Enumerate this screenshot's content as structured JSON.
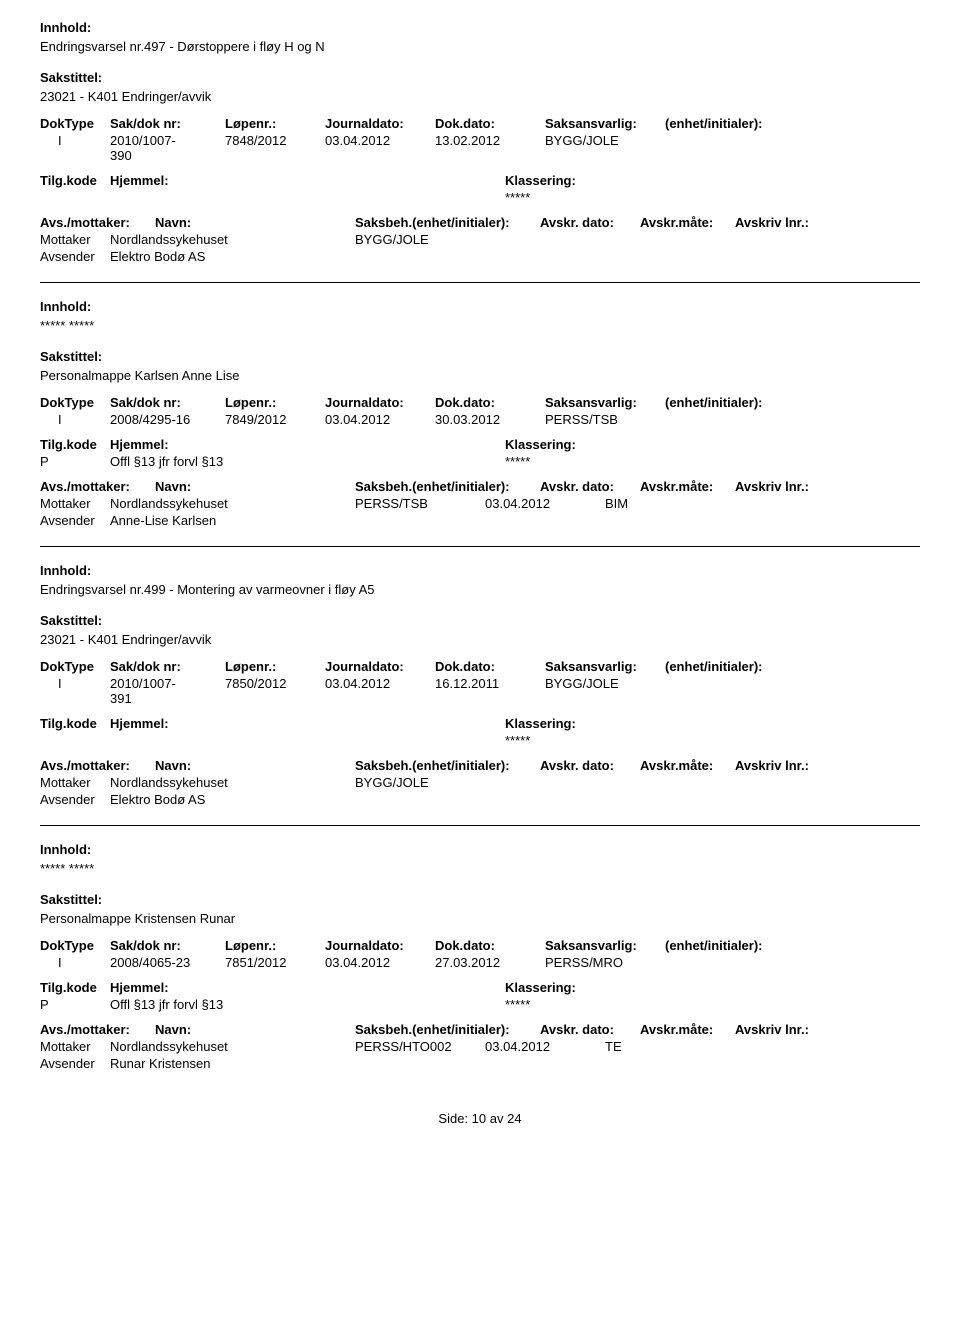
{
  "labels": {
    "innhold": "Innhold:",
    "sakstittel": "Sakstittel:",
    "doktype": "DokType",
    "sakdoknr": "Sak/dok nr:",
    "lopenr": "Løpenr.:",
    "journaldato": "Journaldato:",
    "dokdato": "Dok.dato:",
    "saksansvarlig": "Saksansvarlig:",
    "enhet": "(enhet/initialer):",
    "tilgkode": "Tilg.kode",
    "hjemmel": "Hjemmel:",
    "klassering": "Klassering:",
    "avsmottaker": "Avs./mottaker:",
    "navn": "Navn:",
    "saksbeh": "Saksbeh.(enhet/initialer):",
    "avskrdato": "Avskr. dato:",
    "avskrmote": "Avskr.måte:",
    "avskrivlnr": "Avskriv lnr.:",
    "mottaker": "Mottaker",
    "avsender": "Avsender"
  },
  "records": [
    {
      "innhold": "Endringsvarsel nr.497 - Dørstoppere i fløy H og N",
      "sakstittel": "23021 - K401 Endringer/avvik",
      "doktype": "I",
      "sakdok": "2010/1007-390",
      "lopenr": "7848/2012",
      "journaldato": "03.04.2012",
      "dokdato": "13.02.2012",
      "saksansvarlig": "BYGG/JOLE",
      "tilgkode": "",
      "hjemmel": "",
      "klassering": "*****",
      "mottaker": "Nordlandssykehuset",
      "mottaker_saksbeh": "BYGG/JOLE",
      "mottaker_dato": "",
      "mottaker_mote": "",
      "avsender": "Elektro Bodø AS"
    },
    {
      "innhold": "***** *****",
      "sakstittel": "Personalmappe Karlsen Anne Lise",
      "doktype": "I",
      "sakdok": "2008/4295-16",
      "lopenr": "7849/2012",
      "journaldato": "03.04.2012",
      "dokdato": "30.03.2012",
      "saksansvarlig": "PERSS/TSB",
      "tilgkode": "P",
      "hjemmel": "Offl §13 jfr forvl §13",
      "klassering": "*****",
      "mottaker": "Nordlandssykehuset",
      "mottaker_saksbeh": "PERSS/TSB",
      "mottaker_dato": "03.04.2012",
      "mottaker_mote": "BIM",
      "avsender": "Anne-Lise Karlsen"
    },
    {
      "innhold": "Endringsvarsel nr.499 - Montering av varmeovner i fløy A5",
      "sakstittel": "23021 - K401 Endringer/avvik",
      "doktype": "I",
      "sakdok": "2010/1007-391",
      "lopenr": "7850/2012",
      "journaldato": "03.04.2012",
      "dokdato": "16.12.2011",
      "saksansvarlig": "BYGG/JOLE",
      "tilgkode": "",
      "hjemmel": "",
      "klassering": "*****",
      "mottaker": "Nordlandssykehuset",
      "mottaker_saksbeh": "BYGG/JOLE",
      "mottaker_dato": "",
      "mottaker_mote": "",
      "avsender": "Elektro Bodø AS"
    },
    {
      "innhold": "***** *****",
      "sakstittel": "Personalmappe Kristensen Runar",
      "doktype": "I",
      "sakdok": "2008/4065-23",
      "lopenr": "7851/2012",
      "journaldato": "03.04.2012",
      "dokdato": "27.03.2012",
      "saksansvarlig": "PERSS/MRO",
      "tilgkode": "P",
      "hjemmel": "Offl §13 jfr forvl §13",
      "klassering": "*****",
      "mottaker": "Nordlandssykehuset",
      "mottaker_saksbeh": "PERSS/HTO002",
      "mottaker_dato": "03.04.2012",
      "mottaker_mote": "TE",
      "avsender": "Runar Kristensen"
    }
  ],
  "footer": {
    "label": "Side:",
    "page": "10",
    "of": "av",
    "total": "24"
  }
}
